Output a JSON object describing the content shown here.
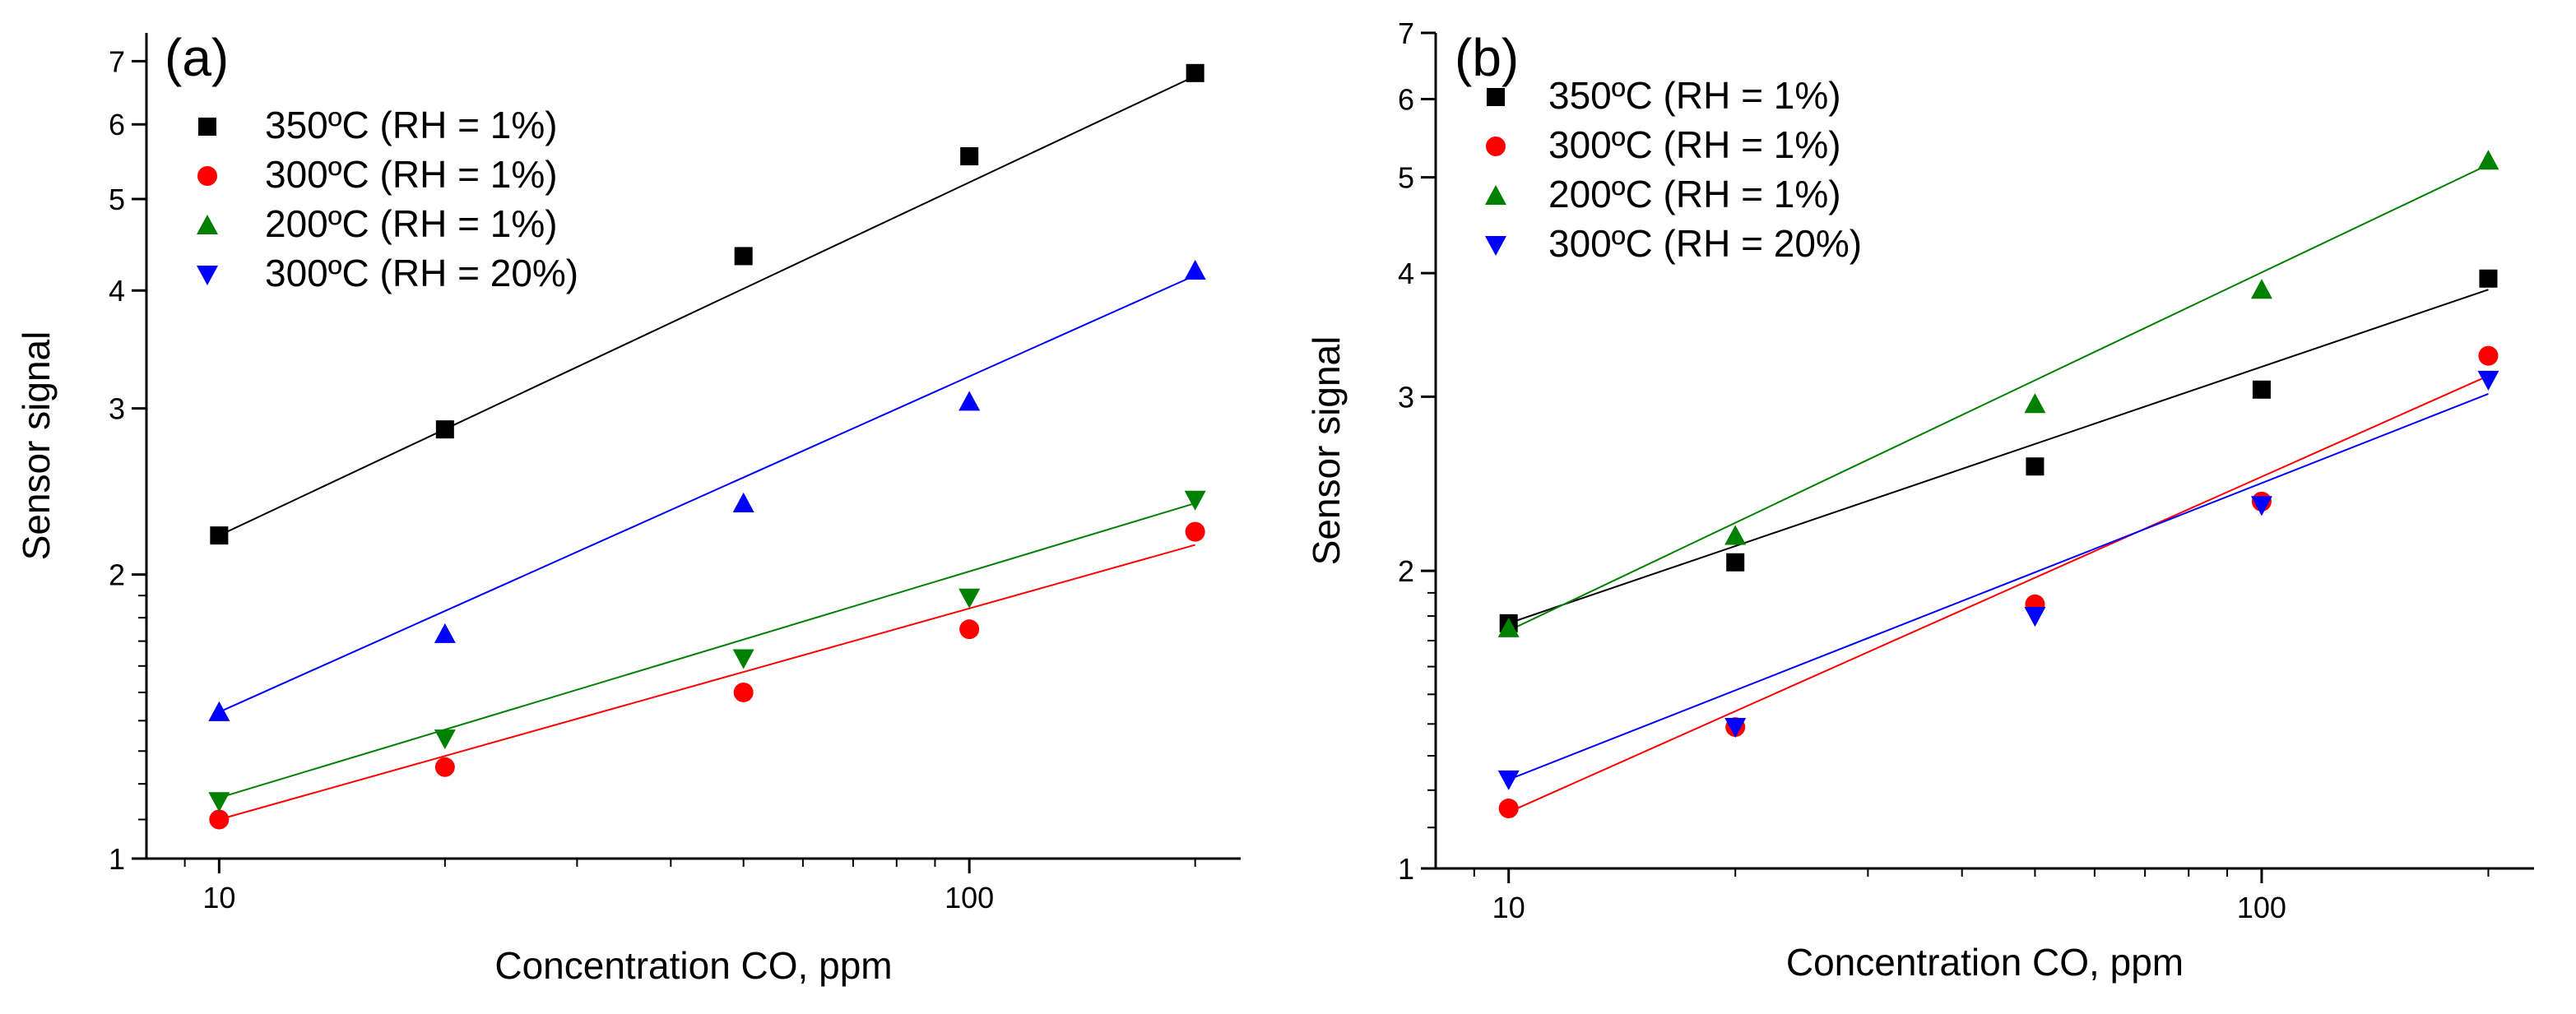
{
  "chart_data": [
    {
      "type": "scatter",
      "panel_label": "(a)",
      "xlabel": "Concentration CO, ppm",
      "ylabel": "Sensor signal",
      "xscale": "log",
      "yscale": "log",
      "xlim": [
        8,
        230
      ],
      "ylim": [
        1,
        7.5
      ],
      "xticks": [
        {
          "value": 10,
          "label": "10"
        },
        {
          "value": 100,
          "label": "100"
        }
      ],
      "yticks": [
        {
          "value": 1,
          "label": "1"
        },
        {
          "value": 2,
          "label": "2"
        },
        {
          "value": 3,
          "label": "3"
        },
        {
          "value": 4,
          "label": "4"
        },
        {
          "value": 5,
          "label": "5"
        },
        {
          "value": 6,
          "label": "6"
        },
        {
          "value": 7,
          "label": "7"
        }
      ],
      "legend_position": "top-left",
      "x": [
        10,
        20,
        50,
        100,
        200
      ],
      "series": [
        {
          "name": "350ºC (RH = 1%)",
          "marker": "square",
          "color": "#000000",
          "values": [
            2.2,
            2.85,
            4.35,
            5.55,
            6.8
          ],
          "fit": [
            10,
            2.2,
            200,
            6.75
          ]
        },
        {
          "name": "300ºC (RH = 1%)",
          "marker": "circle",
          "color": "#ff0000",
          "values": [
            1.1,
            1.25,
            1.5,
            1.75,
            2.22
          ],
          "fit": [
            10,
            1.1,
            200,
            2.15
          ]
        },
        {
          "name": "200ºC (RH = 1%)",
          "marker": "triangle-down",
          "color": "#008000",
          "values": [
            1.15,
            1.34,
            1.63,
            1.89,
            2.4
          ],
          "fit": [
            10,
            1.16,
            200,
            2.38
          ]
        },
        {
          "name": "300ºC (RH = 20%)",
          "marker": "triangle-up",
          "color": "#0000ff",
          "values": [
            1.43,
            1.73,
            2.38,
            3.05,
            4.2
          ],
          "fit": [
            10,
            1.43,
            200,
            4.15
          ]
        }
      ],
      "legend_order": [
        0,
        1,
        3,
        2
      ],
      "legend_markers": [
        "square",
        "circle",
        "triangle-up",
        "triangle-down"
      ],
      "legend_colors": [
        "#000000",
        "#ff0000",
        "#008000",
        "#0000ff"
      ],
      "legend_names": [
        "350ºC (RH = 1%)",
        "300ºC (RH = 1%)",
        "200ºC (RH = 1%)",
        "300ºC (RH = 20%)"
      ]
    },
    {
      "type": "scatter",
      "panel_label": "(b)",
      "xlabel": "Concentration CO, ppm",
      "ylabel": "Sensor signal",
      "xscale": "log",
      "yscale": "log",
      "xlim": [
        8,
        230
      ],
      "ylim": [
        1,
        7
      ],
      "xticks": [
        {
          "value": 10,
          "label": "10"
        },
        {
          "value": 100,
          "label": "100"
        }
      ],
      "yticks": [
        {
          "value": 1,
          "label": "1"
        },
        {
          "value": 2,
          "label": "2"
        },
        {
          "value": 3,
          "label": "3"
        },
        {
          "value": 4,
          "label": "4"
        },
        {
          "value": 5,
          "label": "5"
        },
        {
          "value": 6,
          "label": "6"
        },
        {
          "value": 7,
          "label": "7"
        }
      ],
      "legend_position": "top-left",
      "x": [
        10,
        20,
        50,
        100,
        200
      ],
      "series": [
        {
          "name": "350ºC (RH = 1%)",
          "marker": "square",
          "color": "#000000",
          "values": [
            1.77,
            2.04,
            2.55,
            3.05,
            3.95
          ],
          "fit": [
            10,
            1.77,
            200,
            3.85
          ]
        },
        {
          "name": "300ºC (RH = 1%)",
          "marker": "circle",
          "color": "#ff0000",
          "values": [
            1.15,
            1.39,
            1.85,
            2.35,
            3.3
          ],
          "fit": [
            10,
            1.14,
            200,
            3.15
          ]
        },
        {
          "name": "200ºC (RH = 1%)",
          "marker": "triangle-up",
          "color": "#008000",
          "values": [
            1.75,
            2.17,
            2.95,
            3.85,
            5.2
          ],
          "fit": [
            10,
            1.74,
            200,
            5.15
          ]
        },
        {
          "name": "300ºC (RH = 20%)",
          "marker": "triangle-down",
          "color": "#0000ff",
          "values": [
            1.23,
            1.39,
            1.8,
            2.33,
            3.12
          ],
          "fit": [
            10,
            1.23,
            200,
            3.02
          ]
        }
      ],
      "legend_markers": [
        "square",
        "circle",
        "triangle-up",
        "triangle-down"
      ],
      "legend_colors": [
        "#000000",
        "#ff0000",
        "#008000",
        "#0000ff"
      ],
      "legend_names": [
        "350ºC (RH = 1%)",
        "300ºC (RH = 1%)",
        "200ºC (RH = 1%)",
        "300ºC (RH = 20%)"
      ]
    }
  ]
}
